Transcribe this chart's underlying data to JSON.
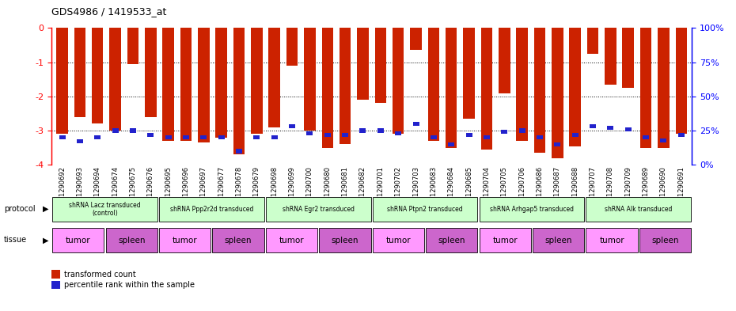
{
  "title": "GDS4986 / 1419533_at",
  "sample_ids": [
    "GSM1290692",
    "GSM1290693",
    "GSM1290694",
    "GSM1290674",
    "GSM1290675",
    "GSM1290676",
    "GSM1290695",
    "GSM1290696",
    "GSM1290697",
    "GSM1290677",
    "GSM1290678",
    "GSM1290679",
    "GSM1290698",
    "GSM1290699",
    "GSM1290700",
    "GSM1290680",
    "GSM1290681",
    "GSM1290682",
    "GSM1290701",
    "GSM1290702",
    "GSM1290703",
    "GSM1290683",
    "GSM1290684",
    "GSM1290685",
    "GSM1290704",
    "GSM1290705",
    "GSM1290706",
    "GSM1290686",
    "GSM1290687",
    "GSM1290688",
    "GSM1290707",
    "GSM1290708",
    "GSM1290709",
    "GSM1290689",
    "GSM1290690",
    "GSM1290691"
  ],
  "red_values": [
    -3.1,
    -2.6,
    -2.8,
    -3.0,
    -1.05,
    -2.6,
    -3.3,
    -3.3,
    -3.35,
    -3.2,
    -3.7,
    -3.1,
    -2.9,
    -1.1,
    -3.0,
    -3.5,
    -3.4,
    -2.1,
    -2.2,
    -3.1,
    -0.65,
    -3.3,
    -3.5,
    -2.65,
    -3.55,
    -1.9,
    -3.3,
    -3.65,
    -3.8,
    -3.45,
    -0.75,
    -1.65,
    -1.75,
    -3.5,
    -3.5,
    -3.1
  ],
  "blue_percentiles": [
    20,
    17,
    20,
    25,
    25,
    22,
    20,
    20,
    20,
    20,
    10,
    20,
    20,
    28,
    23,
    22,
    22,
    25,
    25,
    23,
    30,
    20,
    15,
    22,
    20,
    24,
    25,
    20,
    15,
    22,
    28,
    27,
    26,
    20,
    18,
    22
  ],
  "protocols": [
    {
      "label": "shRNA Lacz transduced\n(control)",
      "start": 0,
      "end": 5,
      "color": "#ccffcc"
    },
    {
      "label": "shRNA Ppp2r2d transduced",
      "start": 6,
      "end": 11,
      "color": "#ccffcc"
    },
    {
      "label": "shRNA Egr2 transduced",
      "start": 12,
      "end": 17,
      "color": "#ccffcc"
    },
    {
      "label": "shRNA Ptpn2 transduced",
      "start": 18,
      "end": 23,
      "color": "#ccffcc"
    },
    {
      "label": "shRNA Arhgap5 transduced",
      "start": 24,
      "end": 29,
      "color": "#ccffcc"
    },
    {
      "label": "shRNA Alk transduced",
      "start": 30,
      "end": 35,
      "color": "#ccffcc"
    }
  ],
  "tissues": [
    {
      "label": "tumor",
      "start": 0,
      "end": 2,
      "color": "#ff99ff"
    },
    {
      "label": "spleen",
      "start": 3,
      "end": 5,
      "color": "#cc66cc"
    },
    {
      "label": "tumor",
      "start": 6,
      "end": 8,
      "color": "#ff99ff"
    },
    {
      "label": "spleen",
      "start": 9,
      "end": 11,
      "color": "#cc66cc"
    },
    {
      "label": "tumor",
      "start": 12,
      "end": 14,
      "color": "#ff99ff"
    },
    {
      "label": "spleen",
      "start": 15,
      "end": 17,
      "color": "#cc66cc"
    },
    {
      "label": "tumor",
      "start": 18,
      "end": 20,
      "color": "#ff99ff"
    },
    {
      "label": "spleen",
      "start": 21,
      "end": 23,
      "color": "#cc66cc"
    },
    {
      "label": "tumor",
      "start": 24,
      "end": 26,
      "color": "#ff99ff"
    },
    {
      "label": "spleen",
      "start": 27,
      "end": 29,
      "color": "#cc66cc"
    },
    {
      "label": "tumor",
      "start": 30,
      "end": 32,
      "color": "#ff99ff"
    },
    {
      "label": "spleen",
      "start": 33,
      "end": 35,
      "color": "#cc66cc"
    }
  ],
  "ylim_left": [
    -4,
    0
  ],
  "ylim_right": [
    0,
    100
  ],
  "yticks_left": [
    0,
    -1,
    -2,
    -3,
    -4
  ],
  "yticks_right": [
    0,
    25,
    50,
    75,
    100
  ],
  "bar_color_red": "#cc2200",
  "bar_color_blue": "#2222cc",
  "background_color": "#ffffff",
  "bar_width": 0.65
}
